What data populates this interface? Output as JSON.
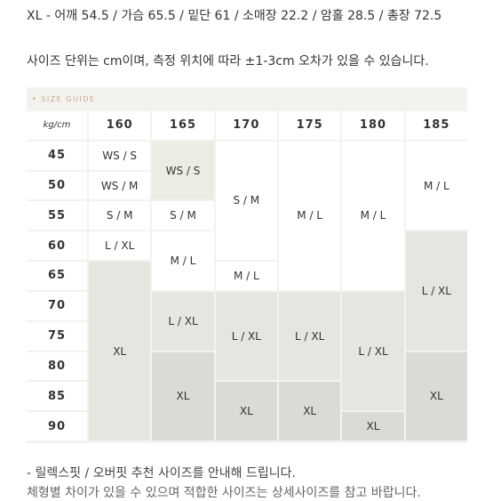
{
  "measure_line": "XL - 어깨 54.5 / 가슴 65.5 / 밑단 61 / 소매장 22.2 / 암홀 28.5 / 총장 72.5",
  "note_line": "사이즈 단위는 cm이며, 측정 위치에 따라 ±1-3cm 오차가 있을 수 있습니다.",
  "guide": {
    "title": "• SIZE GUIDE",
    "corner": "kg/cm",
    "heights": [
      "160",
      "165",
      "170",
      "175",
      "180",
      "185"
    ],
    "weights": [
      "45",
      "50",
      "55",
      "60",
      "65",
      "70",
      "75",
      "80",
      "85",
      "90"
    ],
    "cells": {
      "c160_45": "WS / S",
      "c160_50": "WS / M",
      "c160_55": "S / M",
      "c160_60": "L / XL",
      "c160_70": "XL",
      "c165_45": "WS / S",
      "c165_55": "S / M",
      "c165_60": "M / L",
      "c165_70": "L / XL",
      "c165_80": "XL",
      "c170_45": "S / M",
      "c170_65": "M / L",
      "c170_70": "L / XL",
      "c170_85": "XL",
      "c175_45": "M / L",
      "c175_70": "L / XL",
      "c175_85": "XL",
      "c180_45": "M / L",
      "c180_70": "L / XL",
      "c180_90": "XL",
      "c185_45": "M / L",
      "c185_60": "L / XL",
      "c185_80": "XL"
    }
  },
  "footer": {
    "line1": "- 릴렉스핏 / 오버핏 추천 사이즈를 안내해 드립니다.",
    "line2": "체형별 차이가 있을 수 있으며 적합한 사이즈는 상세사이즈를 참고 바랍니다."
  }
}
